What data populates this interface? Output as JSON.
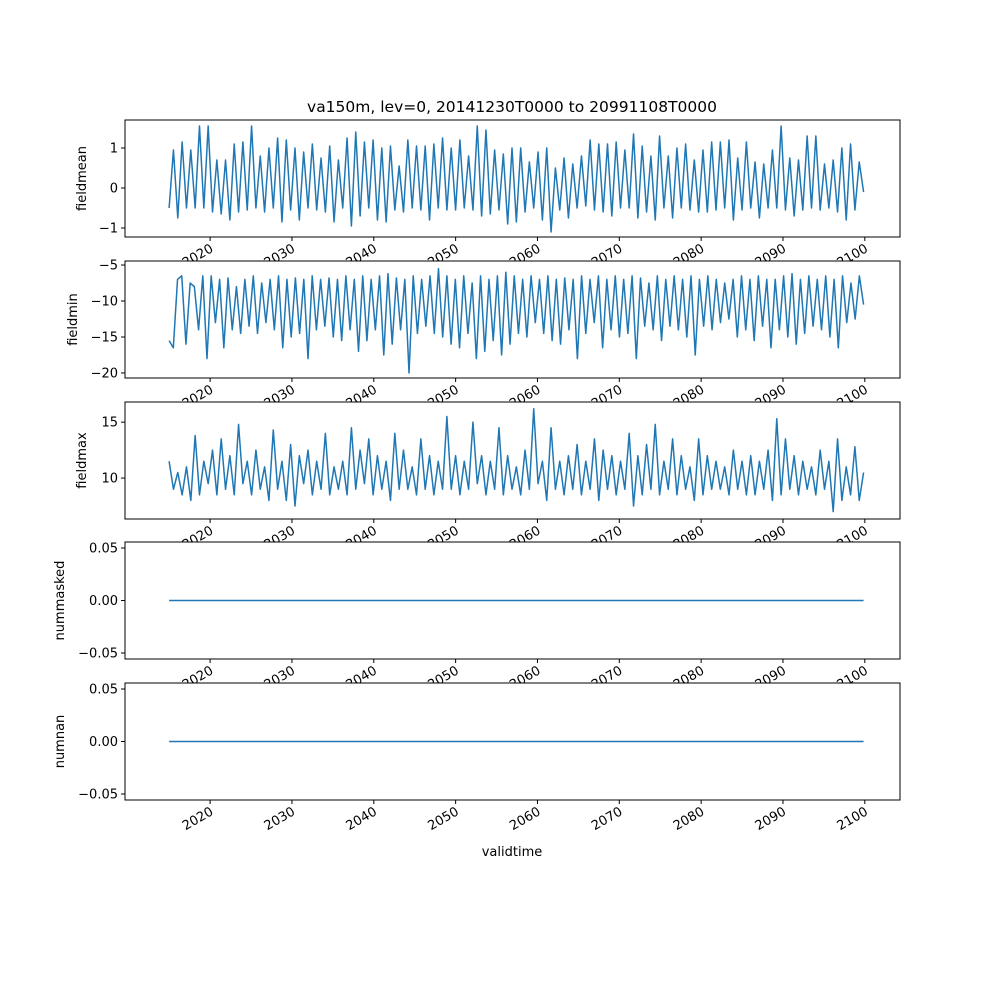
{
  "chart_data": {
    "type": "line",
    "title": "va150m, lev=0, 20141230T0000 to 20991108T0000",
    "xlabel": "validtime",
    "x_range_data": [
      2014.99,
      2099.85
    ],
    "xlim": [
      2009.6,
      2104.3
    ],
    "xticks": [
      2020,
      2030,
      2040,
      2050,
      2060,
      2070,
      2080,
      2090,
      2100
    ],
    "xtick_labels": [
      "2020",
      "2030",
      "2040",
      "2050",
      "2060",
      "2070",
      "2080",
      "2090",
      "2100"
    ],
    "line_color": "#1f77b4",
    "panels": [
      {
        "ylabel": "fieldmean",
        "ylim": [
          -1.225,
          1.7
        ],
        "yticks": [
          1,
          0,
          -1
        ],
        "ytick_labels": [
          "1",
          "0",
          "−1"
        ],
        "values": [
          -0.5,
          0.95,
          -0.75,
          1.15,
          -0.5,
          0.95,
          -0.5,
          1.55,
          -0.5,
          1.55,
          -0.6,
          0.7,
          -0.65,
          0.7,
          -0.8,
          1.1,
          -0.6,
          1.15,
          -0.55,
          1.55,
          -0.5,
          0.8,
          -0.6,
          1.0,
          -0.5,
          1.25,
          -0.85,
          1.2,
          -0.55,
          1.0,
          -0.8,
          0.9,
          -0.5,
          1.1,
          -0.55,
          0.75,
          -0.6,
          1.05,
          -0.85,
          0.7,
          -0.5,
          1.25,
          -0.95,
          1.4,
          -0.7,
          1.15,
          -0.5,
          1.2,
          -0.8,
          1.0,
          -0.85,
          1.05,
          -0.55,
          0.55,
          -0.6,
          1.2,
          -0.5,
          1.05,
          -0.55,
          1.05,
          -0.8,
          1.1,
          -0.5,
          1.25,
          -0.55,
          1.0,
          -0.55,
          1.2,
          -0.5,
          0.8,
          -0.55,
          1.55,
          -0.7,
          1.45,
          -0.65,
          0.95,
          -0.55,
          0.85,
          -0.9,
          1.0,
          -0.85,
          1.0,
          -0.6,
          0.65,
          -0.5,
          0.9,
          -0.8,
          1.0,
          -1.1,
          0.5,
          -0.55,
          0.75,
          -0.75,
          0.6,
          -0.5,
          0.8,
          -0.45,
          1.2,
          -0.55,
          1.1,
          -0.6,
          1.1,
          -0.7,
          1.15,
          -0.5,
          0.95,
          -0.5,
          1.35,
          -0.75,
          1.05,
          -0.6,
          0.8,
          -0.8,
          1.3,
          -0.5,
          0.8,
          -0.75,
          1.0,
          -0.5,
          1.1,
          -0.55,
          0.7,
          -0.6,
          0.95,
          -0.6,
          1.15,
          -0.55,
          1.15,
          -0.5,
          1.2,
          -0.8,
          0.75,
          -0.55,
          1.15,
          -0.5,
          0.65,
          -0.75,
          0.6,
          -0.5,
          0.95,
          -0.5,
          1.55,
          -0.55,
          0.75,
          -0.7,
          0.7,
          -0.55,
          1.3,
          -0.5,
          1.3,
          -0.55,
          0.6,
          -0.5,
          0.7,
          -0.6,
          1.0,
          -0.8,
          1.1,
          -0.55,
          0.65,
          -0.1
        ]
      },
      {
        "ylabel": "fieldmin",
        "ylim": [
          -20.7,
          -4.44
        ],
        "yticks": [
          -5,
          -10,
          -15,
          -20
        ],
        "ytick_labels": [
          "−5",
          "−10",
          "−15",
          "−20"
        ],
        "values": [
          -15.5,
          -16.5,
          -7,
          -6.5,
          -16,
          -7.5,
          -8,
          -14,
          -6.5,
          -18,
          -6.5,
          -13,
          -7,
          -16.5,
          -6.8,
          -14,
          -8,
          -14.5,
          -7,
          -13.5,
          -6.5,
          -14.5,
          -7.5,
          -13,
          -7,
          -14,
          -6.5,
          -16.5,
          -7,
          -15,
          -6.8,
          -14.5,
          -7,
          -18,
          -6.5,
          -14,
          -7,
          -13.5,
          -6.8,
          -15,
          -7,
          -15.5,
          -6.5,
          -14,
          -7,
          -17,
          -6.5,
          -15.5,
          -7,
          -14,
          -6.5,
          -17.5,
          -6.2,
          -16,
          -6.8,
          -14,
          -7,
          -20,
          -6.5,
          -14.5,
          -7,
          -13.5,
          -6.5,
          -14.5,
          -5.5,
          -15,
          -6.5,
          -16,
          -7,
          -16.5,
          -6.5,
          -14.5,
          -7.5,
          -18,
          -6.5,
          -17,
          -7,
          -15.5,
          -6.5,
          -17.5,
          -6,
          -16,
          -6.5,
          -14.5,
          -7,
          -15,
          -6.5,
          -13,
          -7,
          -14.5,
          -6.5,
          -15.5,
          -7,
          -16,
          -6.8,
          -14,
          -7,
          -18,
          -6.5,
          -14.5,
          -7,
          -13,
          -6.5,
          -16.5,
          -7,
          -14,
          -6.5,
          -15,
          -7,
          -14.5,
          -6.5,
          -18,
          -6.8,
          -13.5,
          -7.5,
          -14,
          -6.5,
          -15.5,
          -7,
          -13.5,
          -6.5,
          -14,
          -7,
          -15,
          -6.5,
          -17.5,
          -7,
          -13.5,
          -6.5,
          -14,
          -7,
          -13,
          -7.5,
          -12.5,
          -7,
          -15,
          -6.5,
          -14,
          -7,
          -15.5,
          -6.5,
          -13.5,
          -7,
          -16.5,
          -7,
          -14,
          -6.5,
          -15,
          -6.2,
          -16,
          -7,
          -14.5,
          -6.5,
          -13.5,
          -7,
          -14,
          -6.5,
          -15,
          -7,
          -16.5,
          -6.5,
          -13,
          -7.5,
          -12.5,
          -6.5,
          -10.5
        ]
      },
      {
        "ylabel": "fieldmax",
        "ylim": [
          6.34,
          16.8
        ],
        "yticks": [
          15,
          10
        ],
        "ytick_labels": [
          "15",
          "10"
        ],
        "values": [
          11.5,
          9,
          10.5,
          8.5,
          11,
          8,
          13.8,
          8.5,
          11.5,
          9.5,
          12.5,
          8.5,
          13.5,
          9,
          12,
          8.5,
          14.8,
          9.5,
          11.5,
          8.5,
          12.5,
          9,
          11,
          8,
          14.3,
          9,
          11.5,
          8,
          13,
          7.5,
          12,
          9.5,
          12.5,
          8.5,
          11.5,
          9,
          14,
          8.5,
          11,
          9,
          11.5,
          8.5,
          14.5,
          9,
          12.5,
          9.5,
          13.5,
          8.5,
          12,
          9,
          11.5,
          8,
          14,
          9,
          12.5,
          9,
          11,
          8.5,
          13.5,
          9,
          12,
          8.5,
          11.5,
          9,
          15.5,
          9,
          12,
          8.5,
          11.5,
          9,
          15,
          9.5,
          12,
          8.5,
          11.5,
          9,
          14.5,
          8.5,
          12,
          9,
          11,
          8.5,
          12.5,
          9,
          16.2,
          9.5,
          11.5,
          8,
          14.5,
          9,
          11.5,
          8.5,
          12,
          9,
          13,
          8.5,
          11.5,
          9,
          13.5,
          8,
          12.5,
          9,
          12,
          8.5,
          11.5,
          9,
          14,
          7.5,
          12,
          8.5,
          13,
          9,
          14.8,
          8.5,
          11.5,
          9,
          13.5,
          8.5,
          12,
          9,
          11,
          8,
          13.5,
          8.5,
          12,
          9,
          11.5,
          9,
          11,
          8.5,
          12.5,
          9,
          11.5,
          8.5,
          12,
          8.5,
          11.5,
          9,
          12.5,
          8,
          15.3,
          8.5,
          13.5,
          9,
          12,
          8.5,
          11.5,
          9,
          11,
          8.5,
          12.5,
          9,
          11.5,
          7,
          13.5,
          8,
          11,
          8.5,
          12.8,
          8,
          10.5
        ]
      },
      {
        "ylabel": "nummasked",
        "ylim": [
          -0.0557,
          0.0557
        ],
        "yticks": [
          0.05,
          0.0,
          -0.05
        ],
        "ytick_labels": [
          "0.05",
          "0.00",
          "−0.05"
        ],
        "values": [
          0,
          0
        ]
      },
      {
        "ylabel": "numnan",
        "ylim": [
          -0.0557,
          0.0557
        ],
        "yticks": [
          0.05,
          0.0,
          -0.05
        ],
        "ytick_labels": [
          "0.05",
          "0.00",
          "−0.05"
        ],
        "values": [
          0,
          0
        ]
      }
    ]
  }
}
